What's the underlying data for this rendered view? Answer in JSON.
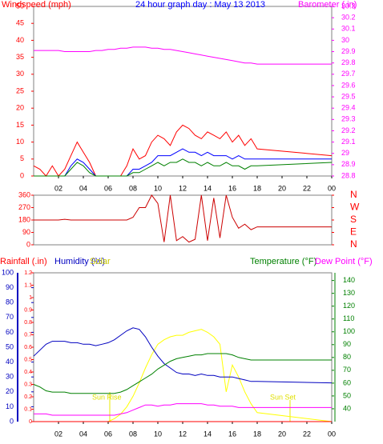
{
  "chart_data": [
    {
      "type": "line",
      "title": "24 hour graph day : May 13 2013",
      "y_label": "Windspeed (mph)",
      "y2_label": "Barometer (.in)",
      "x": [
        0,
        0.5,
        1,
        1.5,
        2,
        2.5,
        3,
        3.5,
        4,
        4.5,
        5,
        5.5,
        6,
        6.5,
        7,
        7.5,
        8,
        8.5,
        9,
        9.5,
        10,
        10.5,
        11,
        11.5,
        12,
        12.5,
        13,
        13.5,
        14,
        14.5,
        15,
        15.5,
        16,
        16.5,
        17,
        17.5,
        18,
        24
      ],
      "xlim": [
        0,
        24
      ],
      "xticks": [
        {
          "value": 2,
          "label": "02"
        },
        {
          "value": 4,
          "label": "04"
        },
        {
          "value": 6,
          "label": "06"
        },
        {
          "value": 8,
          "label": "08"
        },
        10,
        12,
        14,
        16,
        18,
        20,
        22,
        {
          "value": 24,
          "label": "00"
        }
      ],
      "ylim": [
        0,
        50
      ],
      "yticks": [
        0,
        5,
        10,
        15,
        20,
        25,
        30,
        35,
        40,
        45,
        50
      ],
      "y2lim": [
        28.8,
        30.3
      ],
      "y2ticks": [
        28.8,
        28.9,
        {
          "value": 29,
          "label": "29"
        },
        29.1,
        29.2,
        29.3,
        29.4,
        29.5,
        29.6,
        29.7,
        29.8,
        29.9,
        {
          "value": 30,
          "label": "30"
        },
        30.1,
        30.2,
        30.3
      ],
      "series": [
        {
          "color": "#ff0000",
          "values": [
            3,
            2,
            0,
            3,
            0,
            2,
            6,
            10,
            7,
            4,
            0,
            0,
            0,
            0,
            0,
            3,
            8,
            5,
            6,
            10,
            12,
            11,
            9,
            13,
            15,
            14,
            12,
            11,
            13,
            12,
            11,
            13,
            10,
            12,
            9,
            11,
            8,
            6
          ]
        },
        {
          "color": "#0000ff",
          "values": [
            0,
            0,
            0,
            0,
            0,
            0,
            3,
            5,
            4,
            2,
            0,
            0,
            0,
            0,
            0,
            0,
            2,
            2,
            3,
            4,
            6,
            6,
            6,
            7,
            8,
            7,
            7,
            6,
            7,
            6,
            6,
            6,
            5,
            6,
            5,
            5,
            5,
            5
          ]
        },
        {
          "color": "#008000",
          "values": [
            0,
            0,
            0,
            0,
            0,
            0,
            2,
            4,
            3,
            1,
            0,
            0,
            0,
            0,
            0,
            0,
            1,
            1,
            2,
            3,
            4,
            3,
            4,
            4,
            5,
            4,
            4,
            3,
            4,
            3,
            3,
            4,
            3,
            3,
            2,
            3,
            3,
            4
          ]
        },
        {
          "color": "#ff00ff",
          "axis": "y2",
          "values": [
            29.91,
            29.91,
            29.91,
            29.91,
            29.91,
            29.9,
            29.9,
            29.9,
            29.9,
            29.9,
            29.91,
            29.91,
            29.92,
            29.92,
            29.93,
            29.93,
            29.94,
            29.94,
            29.94,
            29.93,
            29.93,
            29.92,
            29.92,
            29.91,
            29.9,
            29.89,
            29.88,
            29.87,
            29.86,
            29.85,
            29.84,
            29.83,
            29.82,
            29.81,
            29.8,
            29.8,
            29.79,
            29.79
          ]
        }
      ]
    },
    {
      "type": "line",
      "x": [
        0,
        0.5,
        1,
        1.5,
        2,
        2.5,
        3,
        3.5,
        4,
        4.5,
        5,
        5.5,
        6,
        6.5,
        7,
        7.5,
        8,
        8.5,
        9,
        9.5,
        10,
        10.5,
        11,
        11.5,
        12,
        12.5,
        13,
        13.5,
        14,
        14.5,
        15,
        15.5,
        16,
        16.5,
        17,
        17.5,
        18,
        24
      ],
      "xlim": [
        0,
        24
      ],
      "ylim": [
        0,
        360
      ],
      "yticks": [
        0,
        90,
        180,
        270,
        360
      ],
      "y2lim": [
        0,
        360
      ],
      "y2ticks": [
        {
          "value": 0,
          "label": "N"
        },
        {
          "value": 90,
          "label": "E"
        },
        {
          "value": 180,
          "label": "S"
        },
        {
          "value": 270,
          "label": "W"
        },
        {
          "value": 360,
          "label": "N"
        }
      ],
      "series": [
        {
          "color": "#cc0000",
          "values": [
            180,
            180,
            180,
            180,
            180,
            185,
            180,
            180,
            180,
            180,
            180,
            180,
            180,
            180,
            180,
            180,
            200,
            270,
            270,
            360,
            300,
            20,
            360,
            30,
            60,
            20,
            40,
            360,
            30,
            340,
            50,
            360,
            200,
            120,
            150,
            110,
            130,
            130
          ]
        }
      ]
    },
    {
      "type": "line",
      "y_labels": [
        "Rainfall (.in)",
        "Humidity (%)",
        "Solar"
      ],
      "y2_labels": [
        "Temperature (°F)",
        "Dew Point (°F)"
      ],
      "annotations": [
        "Sun Rise",
        "Sun Set"
      ],
      "x": [
        0,
        0.5,
        1,
        1.5,
        2,
        2.5,
        3,
        3.5,
        4,
        4.5,
        5,
        5.5,
        6,
        6.5,
        7,
        7.5,
        8,
        8.5,
        9,
        9.5,
        10,
        10.5,
        11,
        11.5,
        12,
        12.5,
        13,
        13.5,
        14,
        14.5,
        15,
        15.5,
        16,
        16.5,
        17,
        17.5,
        18,
        24
      ],
      "xlim": [
        0,
        24
      ],
      "xticks": [
        {
          "value": 2,
          "label": "02"
        },
        {
          "value": 4,
          "label": "04"
        },
        {
          "value": 6,
          "label": "06"
        },
        {
          "value": 8,
          "label": "08"
        },
        10,
        12,
        14,
        16,
        18,
        20,
        22,
        {
          "value": 24,
          "label": "00"
        }
      ],
      "ylim": [
        0,
        100
      ],
      "yticks": [
        0,
        10,
        20,
        30,
        40,
        50,
        60,
        70,
        80,
        90,
        100
      ],
      "y3lim": [
        0,
        1.2
      ],
      "y3ticks": [
        0,
        0.1,
        0.2,
        0.3,
        0.4,
        0.5,
        0.6,
        0.7,
        0.8,
        0.9,
        1,
        1.1,
        1.2
      ],
      "y2lim": [
        30,
        146
      ],
      "y2ticks": [
        40,
        50,
        60,
        70,
        80,
        90,
        100,
        110,
        120,
        130,
        140
      ],
      "series": [
        {
          "color": "#ffff00",
          "values": [
            0,
            0,
            0,
            0,
            0,
            0,
            0,
            0,
            0,
            0,
            0,
            0,
            0,
            2,
            5,
            10,
            17,
            26,
            36,
            45,
            52,
            55,
            57,
            58,
            58,
            60,
            61,
            62,
            60,
            57,
            52,
            20,
            38,
            30,
            20,
            12,
            6,
            0
          ]
        },
        {
          "color": "#0000c0",
          "values": [
            44,
            48,
            52,
            54,
            54,
            54,
            53,
            53,
            52,
            52,
            51,
            52,
            53,
            55,
            58,
            61,
            63,
            62,
            57,
            50,
            44,
            39,
            36,
            33,
            32,
            32,
            31,
            32,
            31,
            31,
            30,
            30,
            30,
            29,
            28,
            27,
            27,
            26
          ]
        },
        {
          "color": "#008000",
          "axis": "y2",
          "values": [
            59,
            57,
            54,
            53,
            53,
            53,
            52,
            52,
            52,
            52,
            52,
            52,
            52,
            52,
            53,
            55,
            58,
            61,
            64,
            67,
            71,
            74,
            77,
            79,
            80,
            81,
            82,
            82,
            83,
            83,
            83,
            83,
            82,
            80,
            79,
            78,
            78,
            78
          ]
        },
        {
          "color": "#ff00ff",
          "axis": "y2",
          "values": [
            36,
            36,
            36,
            35,
            35,
            35,
            35,
            35,
            35,
            35,
            35,
            35,
            35,
            35,
            36,
            37,
            39,
            41,
            43,
            43,
            42,
            43,
            43,
            44,
            44,
            44,
            44,
            44,
            43,
            43,
            42,
            42,
            42,
            41,
            41,
            41,
            41,
            41
          ]
        },
        {
          "color": "#ff0000",
          "axis": "y3",
          "values": [
            0,
            0,
            0,
            0,
            0,
            0,
            0,
            0,
            0,
            0,
            0,
            0,
            0,
            0,
            0,
            0,
            0,
            0,
            0,
            0,
            0,
            0,
            0,
            0,
            0,
            0,
            0,
            0,
            0,
            0,
            0,
            0,
            0,
            0,
            0,
            0,
            0,
            0
          ]
        }
      ]
    }
  ]
}
